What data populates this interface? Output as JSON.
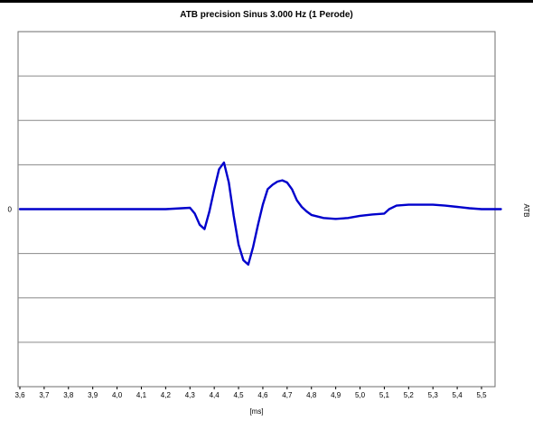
{
  "chart_data": {
    "type": "line",
    "title": "ATB precision Sinus 3.000 Hz (1 Perode)",
    "xlabel": "[ms]",
    "ylabel": "",
    "series_label": "ATB",
    "xlim": [
      3.6,
      5.58
    ],
    "ylim": [
      -4,
      4
    ],
    "x_ticks": [
      3.6,
      3.7,
      3.8,
      3.9,
      4.0,
      4.1,
      4.2,
      4.3,
      4.4,
      4.5,
      4.6,
      4.7,
      4.8,
      4.9,
      5.0,
      5.1,
      5.2,
      5.3,
      5.4,
      5.5
    ],
    "x_tick_labels": [
      "3,6",
      "3,7",
      "3,8",
      "3,9",
      "4,0",
      "4,1",
      "4,2",
      "4,3",
      "4,4",
      "4,5",
      "4,6",
      "4,7",
      "4,8",
      "4,9",
      "5,0",
      "5,1",
      "5,2",
      "5,3",
      "5,4",
      "5,5"
    ],
    "y_ticks": [
      -3,
      -2,
      -1,
      0,
      1,
      2,
      3
    ],
    "y_tick_labels": [
      {
        "value": 0,
        "label": "0"
      }
    ],
    "grid": {
      "horizontal": true,
      "vertical": false
    },
    "line_color": "#0000cc",
    "series": [
      {
        "name": "",
        "x": [
          3.6,
          3.7,
          3.8,
          3.9,
          4.0,
          4.1,
          4.2,
          4.3,
          4.32,
          4.34,
          4.36,
          4.38,
          4.4,
          4.42,
          4.44,
          4.46,
          4.48,
          4.5,
          4.52,
          4.54,
          4.56,
          4.58,
          4.6,
          4.62,
          4.64,
          4.66,
          4.68,
          4.7,
          4.72,
          4.74,
          4.76,
          4.78,
          4.8,
          4.85,
          4.9,
          4.95,
          5.0,
          5.05,
          5.1,
          5.12,
          5.15,
          5.2,
          5.25,
          5.3,
          5.35,
          5.4,
          5.45,
          5.5,
          5.55,
          5.58
        ],
        "y": [
          0,
          0,
          0,
          0,
          0,
          0,
          0,
          0.03,
          -0.1,
          -0.35,
          -0.45,
          -0.05,
          0.45,
          0.9,
          1.05,
          0.6,
          -0.15,
          -0.8,
          -1.15,
          -1.25,
          -0.85,
          -0.35,
          0.1,
          0.45,
          0.55,
          0.62,
          0.65,
          0.6,
          0.45,
          0.2,
          0.05,
          -0.05,
          -0.13,
          -0.2,
          -0.22,
          -0.2,
          -0.15,
          -0.12,
          -0.1,
          0.0,
          0.08,
          0.1,
          0.1,
          0.1,
          0.08,
          0.05,
          0.02,
          0.0,
          0.0,
          0.0
        ]
      }
    ]
  }
}
